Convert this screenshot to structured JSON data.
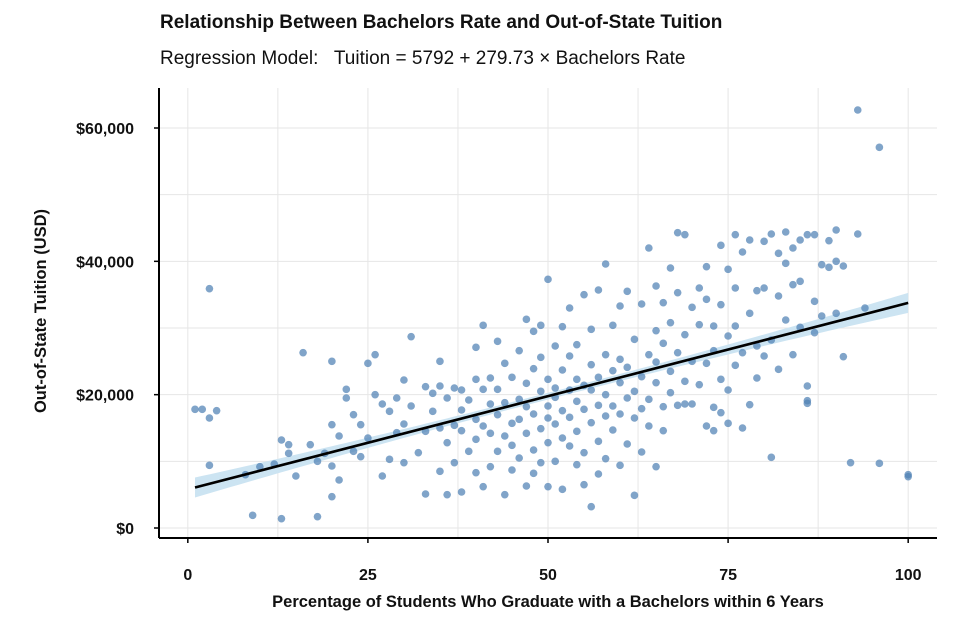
{
  "title": "Relationship Between Bachelors Rate and Out-of-State Tuition",
  "subtitle": "Regression Model:   Tuition = 5792 + 279.73 × Bachelors Rate",
  "colors": {
    "point": "#4f81b4",
    "ribbon": "#cce4f2",
    "line": "#000000",
    "grid": "#e6e6e6",
    "axis": "#000000"
  },
  "chart_data": {
    "type": "scatter",
    "title": "Relationship Between Bachelors Rate and Out-of-State Tuition",
    "subtitle": "Regression Model:   Tuition = 5792 + 279.73 × Bachelors Rate",
    "xlabel": "Percentage of Students Who Graduate with a Bachelors within 6 Years",
    "ylabel": "Out-of-State Tuition (USD)",
    "xlim": [
      -4,
      104
    ],
    "ylim": [
      -1500,
      66000
    ],
    "x_ticks": [
      0,
      25,
      50,
      75,
      100
    ],
    "x_tick_labels": [
      "0",
      "25",
      "50",
      "75",
      "100"
    ],
    "y_ticks": [
      0,
      20000,
      40000,
      60000
    ],
    "y_tick_labels": [
      "$0",
      "$20,000",
      "$40,000",
      "$60,000"
    ],
    "grid": true,
    "regression": {
      "intercept": 5792,
      "slope": 279.73,
      "x_range": [
        1,
        100
      ],
      "ci_halfwidth_ends": 1500,
      "ci_halfwidth_mid": 500
    },
    "points": [
      [
        1,
        17800
      ],
      [
        2,
        17800
      ],
      [
        3,
        35900
      ],
      [
        3,
        16500
      ],
      [
        3,
        9400
      ],
      [
        4,
        17600
      ],
      [
        9,
        1900
      ],
      [
        13,
        1400
      ],
      [
        18,
        1700
      ],
      [
        8,
        8000
      ],
      [
        10,
        9200
      ],
      [
        12,
        9600
      ],
      [
        13,
        13200
      ],
      [
        14,
        11200
      ],
      [
        14,
        12500
      ],
      [
        15,
        7800
      ],
      [
        16,
        26300
      ],
      [
        17,
        12500
      ],
      [
        18,
        10000
      ],
      [
        19,
        11200
      ],
      [
        20,
        15500
      ],
      [
        20,
        4700
      ],
      [
        20,
        25000
      ],
      [
        20,
        9300
      ],
      [
        21,
        13800
      ],
      [
        21,
        7200
      ],
      [
        22,
        19500
      ],
      [
        22,
        20800
      ],
      [
        23,
        17000
      ],
      [
        23,
        11500
      ],
      [
        24,
        10700
      ],
      [
        24,
        15500
      ],
      [
        25,
        24700
      ],
      [
        25,
        13500
      ],
      [
        26,
        26000
      ],
      [
        26,
        20000
      ],
      [
        27,
        18600
      ],
      [
        27,
        7800
      ],
      [
        28,
        10300
      ],
      [
        28,
        17500
      ],
      [
        29,
        19500
      ],
      [
        29,
        14300
      ],
      [
        30,
        22200
      ],
      [
        30,
        15600
      ],
      [
        30,
        9800
      ],
      [
        31,
        28700
      ],
      [
        31,
        18300
      ],
      [
        32,
        11300
      ],
      [
        33,
        14500
      ],
      [
        33,
        21200
      ],
      [
        33,
        5100
      ],
      [
        34,
        20200
      ],
      [
        34,
        17500
      ],
      [
        35,
        21300
      ],
      [
        35,
        15000
      ],
      [
        35,
        8500
      ],
      [
        35,
        25000
      ],
      [
        36,
        5000
      ],
      [
        36,
        19500
      ],
      [
        36,
        12800
      ],
      [
        37,
        15400
      ],
      [
        37,
        21000
      ],
      [
        37,
        9800
      ],
      [
        38,
        17700
      ],
      [
        38,
        20700
      ],
      [
        38,
        5400
      ],
      [
        38,
        14600
      ],
      [
        39,
        11500
      ],
      [
        39,
        19200
      ],
      [
        40,
        22300
      ],
      [
        40,
        16300
      ],
      [
        40,
        8300
      ],
      [
        40,
        27100
      ],
      [
        40,
        13300
      ],
      [
        41,
        20800
      ],
      [
        41,
        15300
      ],
      [
        41,
        6200
      ],
      [
        41,
        30400
      ],
      [
        42,
        18600
      ],
      [
        42,
        14200
      ],
      [
        42,
        9200
      ],
      [
        42,
        22500
      ],
      [
        43,
        17000
      ],
      [
        43,
        20800
      ],
      [
        43,
        11500
      ],
      [
        43,
        28000
      ],
      [
        44,
        13800
      ],
      [
        44,
        24700
      ],
      [
        44,
        5000
      ],
      [
        44,
        18800
      ],
      [
        45,
        15700
      ],
      [
        45,
        22600
      ],
      [
        45,
        12400
      ],
      [
        45,
        8700
      ],
      [
        46,
        19300
      ],
      [
        46,
        26600
      ],
      [
        46,
        16300
      ],
      [
        46,
        10500
      ],
      [
        47,
        21700
      ],
      [
        47,
        14200
      ],
      [
        47,
        31300
      ],
      [
        47,
        6300
      ],
      [
        47,
        18200
      ],
      [
        48,
        23900
      ],
      [
        48,
        17100
      ],
      [
        48,
        11700
      ],
      [
        48,
        29500
      ],
      [
        48,
        8200
      ],
      [
        49,
        20500
      ],
      [
        49,
        14900
      ],
      [
        49,
        25600
      ],
      [
        49,
        9800
      ],
      [
        49,
        30400
      ],
      [
        50,
        18300
      ],
      [
        50,
        22300
      ],
      [
        50,
        12800
      ],
      [
        50,
        37300
      ],
      [
        50,
        16500
      ],
      [
        50,
        6200
      ],
      [
        51,
        21000
      ],
      [
        51,
        27300
      ],
      [
        51,
        15600
      ],
      [
        51,
        10000
      ],
      [
        51,
        19600
      ],
      [
        52,
        23700
      ],
      [
        52,
        13500
      ],
      [
        52,
        30200
      ],
      [
        52,
        17600
      ],
      [
        52,
        5800
      ],
      [
        53,
        20700
      ],
      [
        53,
        25800
      ],
      [
        53,
        12300
      ],
      [
        53,
        16600
      ],
      [
        53,
        33000
      ],
      [
        54,
        19000
      ],
      [
        54,
        22300
      ],
      [
        54,
        9500
      ],
      [
        54,
        27500
      ],
      [
        54,
        14500
      ],
      [
        55,
        21400
      ],
      [
        55,
        17800
      ],
      [
        55,
        35000
      ],
      [
        55,
        11300
      ],
      [
        55,
        6500
      ],
      [
        56,
        24500
      ],
      [
        56,
        15800
      ],
      [
        56,
        3200
      ],
      [
        56,
        20700
      ],
      [
        56,
        29800
      ],
      [
        57,
        18400
      ],
      [
        57,
        22600
      ],
      [
        57,
        13000
      ],
      [
        57,
        35700
      ],
      [
        57,
        8100
      ],
      [
        58,
        16800
      ],
      [
        58,
        26000
      ],
      [
        58,
        20000
      ],
      [
        58,
        10400
      ],
      [
        58,
        39600
      ],
      [
        59,
        23600
      ],
      [
        59,
        14700
      ],
      [
        59,
        30400
      ],
      [
        59,
        18300
      ],
      [
        60,
        21800
      ],
      [
        60,
        17100
      ],
      [
        60,
        25300
      ],
      [
        60,
        9400
      ],
      [
        60,
        33300
      ],
      [
        61,
        19500
      ],
      [
        61,
        24100
      ],
      [
        61,
        12600
      ],
      [
        61,
        35500
      ],
      [
        62,
        20500
      ],
      [
        62,
        16500
      ],
      [
        62,
        28300
      ],
      [
        62,
        4900
      ],
      [
        63,
        22700
      ],
      [
        63,
        17900
      ],
      [
        63,
        33600
      ],
      [
        63,
        11400
      ],
      [
        64,
        26000
      ],
      [
        64,
        19300
      ],
      [
        64,
        42000
      ],
      [
        64,
        15300
      ],
      [
        65,
        21800
      ],
      [
        65,
        29600
      ],
      [
        65,
        24900
      ],
      [
        65,
        9200
      ],
      [
        65,
        36300
      ],
      [
        66,
        18200
      ],
      [
        66,
        27700
      ],
      [
        66,
        33800
      ],
      [
        66,
        14600
      ],
      [
        67,
        23500
      ],
      [
        67,
        30800
      ],
      [
        67,
        20300
      ],
      [
        67,
        39000
      ],
      [
        68,
        18400
      ],
      [
        68,
        26300
      ],
      [
        68,
        44300
      ],
      [
        68,
        35300
      ],
      [
        69,
        22000
      ],
      [
        69,
        29000
      ],
      [
        69,
        18600
      ],
      [
        69,
        44000
      ],
      [
        70,
        25000
      ],
      [
        70,
        33100
      ],
      [
        70,
        18600
      ],
      [
        71,
        21500
      ],
      [
        71,
        30500
      ],
      [
        71,
        36000
      ],
      [
        72,
        24700
      ],
      [
        72,
        34300
      ],
      [
        72,
        15300
      ],
      [
        72,
        39200
      ],
      [
        73,
        26600
      ],
      [
        73,
        18100
      ],
      [
        73,
        30300
      ],
      [
        73,
        14600
      ],
      [
        74,
        33500
      ],
      [
        74,
        22300
      ],
      [
        74,
        42400
      ],
      [
        74,
        17300
      ],
      [
        75,
        28800
      ],
      [
        75,
        20700
      ],
      [
        75,
        38800
      ],
      [
        75,
        15700
      ],
      [
        76,
        44000
      ],
      [
        76,
        30300
      ],
      [
        76,
        24400
      ],
      [
        76,
        36000
      ],
      [
        77,
        26300
      ],
      [
        77,
        41400
      ],
      [
        77,
        15000
      ],
      [
        78,
        32200
      ],
      [
        78,
        18500
      ],
      [
        78,
        43200
      ],
      [
        79,
        27300
      ],
      [
        79,
        35600
      ],
      [
        79,
        22500
      ],
      [
        80,
        36000
      ],
      [
        80,
        25800
      ],
      [
        80,
        43000
      ],
      [
        81,
        10600
      ],
      [
        81,
        44100
      ],
      [
        81,
        28200
      ],
      [
        82,
        34800
      ],
      [
        82,
        23800
      ],
      [
        82,
        41200
      ],
      [
        83,
        39700
      ],
      [
        83,
        31200
      ],
      [
        83,
        44400
      ],
      [
        84,
        36500
      ],
      [
        84,
        26000
      ],
      [
        84,
        42000
      ],
      [
        85,
        30100
      ],
      [
        85,
        43200
      ],
      [
        85,
        37000
      ],
      [
        86,
        21300
      ],
      [
        86,
        19100
      ],
      [
        86,
        18700
      ],
      [
        86,
        44000
      ],
      [
        87,
        34000
      ],
      [
        87,
        44000
      ],
      [
        87,
        29300
      ],
      [
        88,
        39500
      ],
      [
        88,
        31800
      ],
      [
        89,
        43100
      ],
      [
        89,
        39100
      ],
      [
        90,
        44700
      ],
      [
        90,
        40000
      ],
      [
        90,
        32200
      ],
      [
        91,
        25700
      ],
      [
        91,
        39300
      ],
      [
        92,
        9800
      ],
      [
        93,
        44100
      ],
      [
        93,
        62700
      ],
      [
        94,
        33000
      ],
      [
        96,
        57100
      ],
      [
        96,
        9700
      ],
      [
        100,
        8000
      ],
      [
        100,
        7700
      ]
    ]
  }
}
